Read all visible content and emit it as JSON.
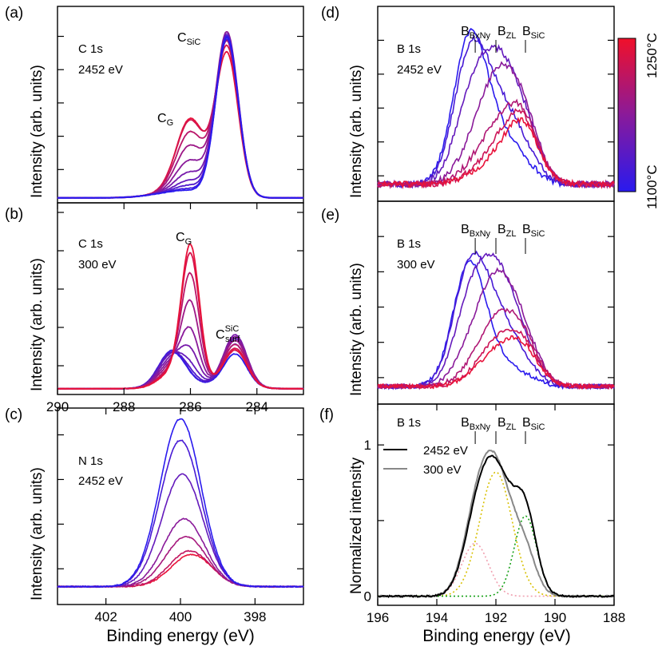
{
  "colors": {
    "hot": "#e8123a",
    "cold": "#2a1aee",
    "dark_black": "#000000",
    "gray": "#888888",
    "pink_fit": "#f0a0b0",
    "yellow_fit": "#d8c000",
    "green_fit": "#16a016"
  },
  "colorbar": {
    "max_label": "1250°C",
    "min_label": "1100°C"
  },
  "chart_data": [
    {
      "id": "a",
      "type": "line",
      "panel_label": "(a)",
      "region": "C 1s",
      "photon_energy": "2452 eV",
      "ylabel": "Intensity (arb. units)",
      "xlabel": "",
      "xlim": [
        290.0,
        282.6
      ],
      "ylim": [
        0,
        1.18
      ],
      "yticks": [
        0.2,
        0.4,
        0.6,
        0.8,
        1.0
      ],
      "peak_labels": [
        {
          "text": "C",
          "sub": "SiC",
          "x": 285.0,
          "y": 1.12
        },
        {
          "text": "C",
          "sub": "G",
          "x": 286.6,
          "y": 0.56
        }
      ],
      "series_note": "10 spectra, temperature 1100°C (blue) to 1250°C (red)",
      "peaks": {
        "cg_center": 286.0,
        "cg_width": 0.42,
        "main_center": 284.9,
        "main_width": 0.34
      },
      "series": [
        {
          "t": 0.0,
          "cg": 0.02,
          "main": 0.96
        },
        {
          "t": 0.1,
          "cg": 0.03,
          "main": 0.97
        },
        {
          "t": 0.2,
          "cg": 0.05,
          "main": 0.95
        },
        {
          "t": 0.3,
          "cg": 0.08,
          "main": 0.98
        },
        {
          "t": 0.4,
          "cg": 0.13,
          "main": 0.96
        },
        {
          "t": 0.5,
          "cg": 0.2,
          "main": 0.99
        },
        {
          "t": 0.6,
          "cg": 0.29,
          "main": 0.94
        },
        {
          "t": 0.75,
          "cg": 0.37,
          "main": 0.93
        },
        {
          "t": 0.9,
          "cg": 0.44,
          "main": 0.9
        },
        {
          "t": 1.0,
          "cg": 0.45,
          "main": 0.86
        }
      ]
    },
    {
      "id": "b",
      "type": "line",
      "panel_label": "(b)",
      "region": "C 1s",
      "photon_energy": "300 eV",
      "ylabel": "Intensity (arb. units)",
      "xlabel": "",
      "xlim": [
        290.0,
        282.6
      ],
      "ylim": [
        0,
        1.0
      ],
      "yticks": [
        0.15,
        0.35,
        0.55,
        0.75,
        0.95
      ],
      "xticks": [
        290,
        288,
        286,
        284
      ],
      "xticklabels": [
        "290",
        "288",
        "286",
        "284"
      ],
      "peak_labels": [
        {
          "text": "C",
          "sub": "G",
          "x": 286.0,
          "y": 0.94
        },
        {
          "text": "C",
          "sup": "SiC",
          "sub": "surf",
          "x": 284.5,
          "y": 0.33
        }
      ],
      "peaks": {
        "cg_center": 286.0,
        "cg_width": 0.27,
        "b1_center": 286.55,
        "b1_width": 0.4,
        "surf_center": 284.65,
        "surf_width": 0.35
      },
      "series": [
        {
          "t": 0.0,
          "cg": 0.0,
          "b1": 0.18,
          "surf": 0.17
        },
        {
          "t": 0.1,
          "cg": 0.0,
          "b1": 0.19,
          "surf": 0.19
        },
        {
          "t": 0.2,
          "cg": 0.02,
          "b1": 0.18,
          "surf": 0.22
        },
        {
          "t": 0.3,
          "cg": 0.06,
          "b1": 0.17,
          "surf": 0.25
        },
        {
          "t": 0.4,
          "cg": 0.14,
          "b1": 0.15,
          "surf": 0.27
        },
        {
          "t": 0.5,
          "cg": 0.25,
          "b1": 0.13,
          "surf": 0.26
        },
        {
          "t": 0.6,
          "cg": 0.4,
          "b1": 0.11,
          "surf": 0.24
        },
        {
          "t": 0.75,
          "cg": 0.55,
          "b1": 0.09,
          "surf": 0.22
        },
        {
          "t": 0.9,
          "cg": 0.66,
          "b1": 0.08,
          "surf": 0.2
        },
        {
          "t": 1.0,
          "cg": 0.71,
          "b1": 0.07,
          "surf": 0.19
        }
      ]
    },
    {
      "id": "c",
      "type": "line",
      "panel_label": "(c)",
      "region": "N 1s",
      "photon_energy": "2452 eV",
      "ylabel": "Intensity (arb. units)",
      "xlabel": "Binding energy (eV)",
      "xlim": [
        403.3,
        396.7
      ],
      "ylim": [
        0,
        1.1
      ],
      "yticks": [
        0.2,
        0.45,
        0.7,
        0.95
      ],
      "xticks": [
        402,
        400,
        398
      ],
      "xticklabels": [
        "402",
        "400",
        "398"
      ],
      "series": [
        {
          "t": 0.0,
          "amp": 0.94,
          "center": 400.0
        },
        {
          "t": 0.15,
          "amp": 0.82,
          "center": 400.0
        },
        {
          "t": 0.3,
          "amp": 0.63,
          "center": 399.95
        },
        {
          "t": 0.5,
          "amp": 0.38,
          "center": 399.9
        },
        {
          "t": 0.65,
          "amp": 0.28,
          "center": 399.85
        },
        {
          "t": 0.8,
          "amp": 0.2,
          "center": 399.75
        },
        {
          "t": 1.0,
          "amp": 0.18,
          "center": 399.7
        }
      ]
    },
    {
      "id": "d",
      "type": "line",
      "panel_label": "(d)",
      "region": "B 1s",
      "photon_energy": "2452 eV",
      "ylabel": "Intensity (arb. units)",
      "xlabel": "",
      "xlim": [
        196.0,
        188.0
      ],
      "ylim": [
        0,
        1.15
      ],
      "yticks": [
        0.15,
        0.35,
        0.55,
        0.75,
        0.95
      ],
      "marker_labels": [
        {
          "text": "B",
          "sub": "BxNy",
          "x": 192.7
        },
        {
          "text": "B",
          "sub": "ZL",
          "x": 192.0
        },
        {
          "text": "B",
          "sub": "SiC",
          "x": 191.0
        }
      ],
      "series": [
        {
          "t": 0.0,
          "a1": 0.82,
          "a2": 0.25,
          "a3": 0.1
        },
        {
          "t": 0.15,
          "a1": 0.7,
          "a2": 0.4,
          "a3": 0.18
        },
        {
          "t": 0.3,
          "a1": 0.4,
          "a2": 0.62,
          "a3": 0.32
        },
        {
          "t": 0.5,
          "a1": 0.12,
          "a2": 0.55,
          "a3": 0.38
        },
        {
          "t": 0.7,
          "a1": 0.05,
          "a2": 0.28,
          "a3": 0.36
        },
        {
          "t": 0.85,
          "a1": 0.02,
          "a2": 0.18,
          "a3": 0.36
        },
        {
          "t": 1.0,
          "a1": 0.02,
          "a2": 0.12,
          "a3": 0.34
        }
      ]
    },
    {
      "id": "e",
      "type": "line",
      "panel_label": "(e)",
      "region": "B 1s",
      "photon_energy": "300 eV",
      "ylabel": "Intensity (arb. units)",
      "xlabel": "",
      "xlim": [
        196.0,
        188.0
      ],
      "ylim": [
        0,
        1.15
      ],
      "yticks": [
        0.15,
        0.35,
        0.55,
        0.75,
        0.95
      ],
      "marker_labels": [
        {
          "text": "B",
          "sub": "BxNy",
          "x": 192.7
        },
        {
          "text": "B",
          "sub": "ZL",
          "x": 192.0
        },
        {
          "text": "B",
          "sub": "SiC",
          "x": 191.0
        }
      ],
      "series": [
        {
          "t": 0.0,
          "a1": 0.68,
          "a2": 0.1,
          "a3": 0.05
        },
        {
          "t": 0.15,
          "a1": 0.62,
          "a2": 0.35,
          "a3": 0.1
        },
        {
          "t": 0.3,
          "a1": 0.4,
          "a2": 0.58,
          "a3": 0.18
        },
        {
          "t": 0.5,
          "a1": 0.15,
          "a2": 0.55,
          "a3": 0.25
        },
        {
          "t": 0.7,
          "a1": 0.05,
          "a2": 0.33,
          "a3": 0.25
        },
        {
          "t": 0.85,
          "a1": 0.02,
          "a2": 0.22,
          "a3": 0.22
        },
        {
          "t": 1.0,
          "a1": 0.02,
          "a2": 0.17,
          "a3": 0.2
        }
      ]
    },
    {
      "id": "f",
      "type": "line",
      "panel_label": "(f)",
      "region": "B 1s",
      "ylabel": "Normalized intensity",
      "xlabel": "Binding energy (eV)",
      "xlim": [
        196.0,
        188.0
      ],
      "ylim": [
        -0.06,
        1.27
      ],
      "yticks": [
        0,
        0.5,
        1
      ],
      "yticklabels": [
        "0",
        "",
        "1"
      ],
      "xticks": [
        196,
        194,
        192,
        190,
        188
      ],
      "xticklabels": [
        "196",
        "194",
        "192",
        "190",
        "188"
      ],
      "marker_labels": [
        {
          "text": "B",
          "sub": "BxNy",
          "x": 192.7
        },
        {
          "text": "B",
          "sub": "ZL",
          "x": 192.0
        },
        {
          "text": "B",
          "sub": "SiC",
          "x": 191.0
        }
      ],
      "legend": [
        {
          "label": "2452 eV",
          "color": "#000000"
        },
        {
          "label": "300 eV",
          "color": "#888888"
        }
      ],
      "components": [
        {
          "name": "B_BxNy fit",
          "center": 192.7,
          "amp": 0.35,
          "sigma": 0.45
        },
        {
          "name": "B_ZL fit",
          "center": 192.0,
          "amp": 0.82,
          "sigma": 0.55
        },
        {
          "name": "B_SiC fit",
          "center": 191.0,
          "amp": 0.53,
          "sigma": 0.38
        }
      ],
      "series": [
        {
          "name": "2452 eV",
          "a1": 0.32,
          "a2": 0.8,
          "a3": 0.5
        },
        {
          "name": "300 eV",
          "a1": 0.36,
          "a2": 0.82,
          "a3": 0.24
        }
      ]
    }
  ]
}
